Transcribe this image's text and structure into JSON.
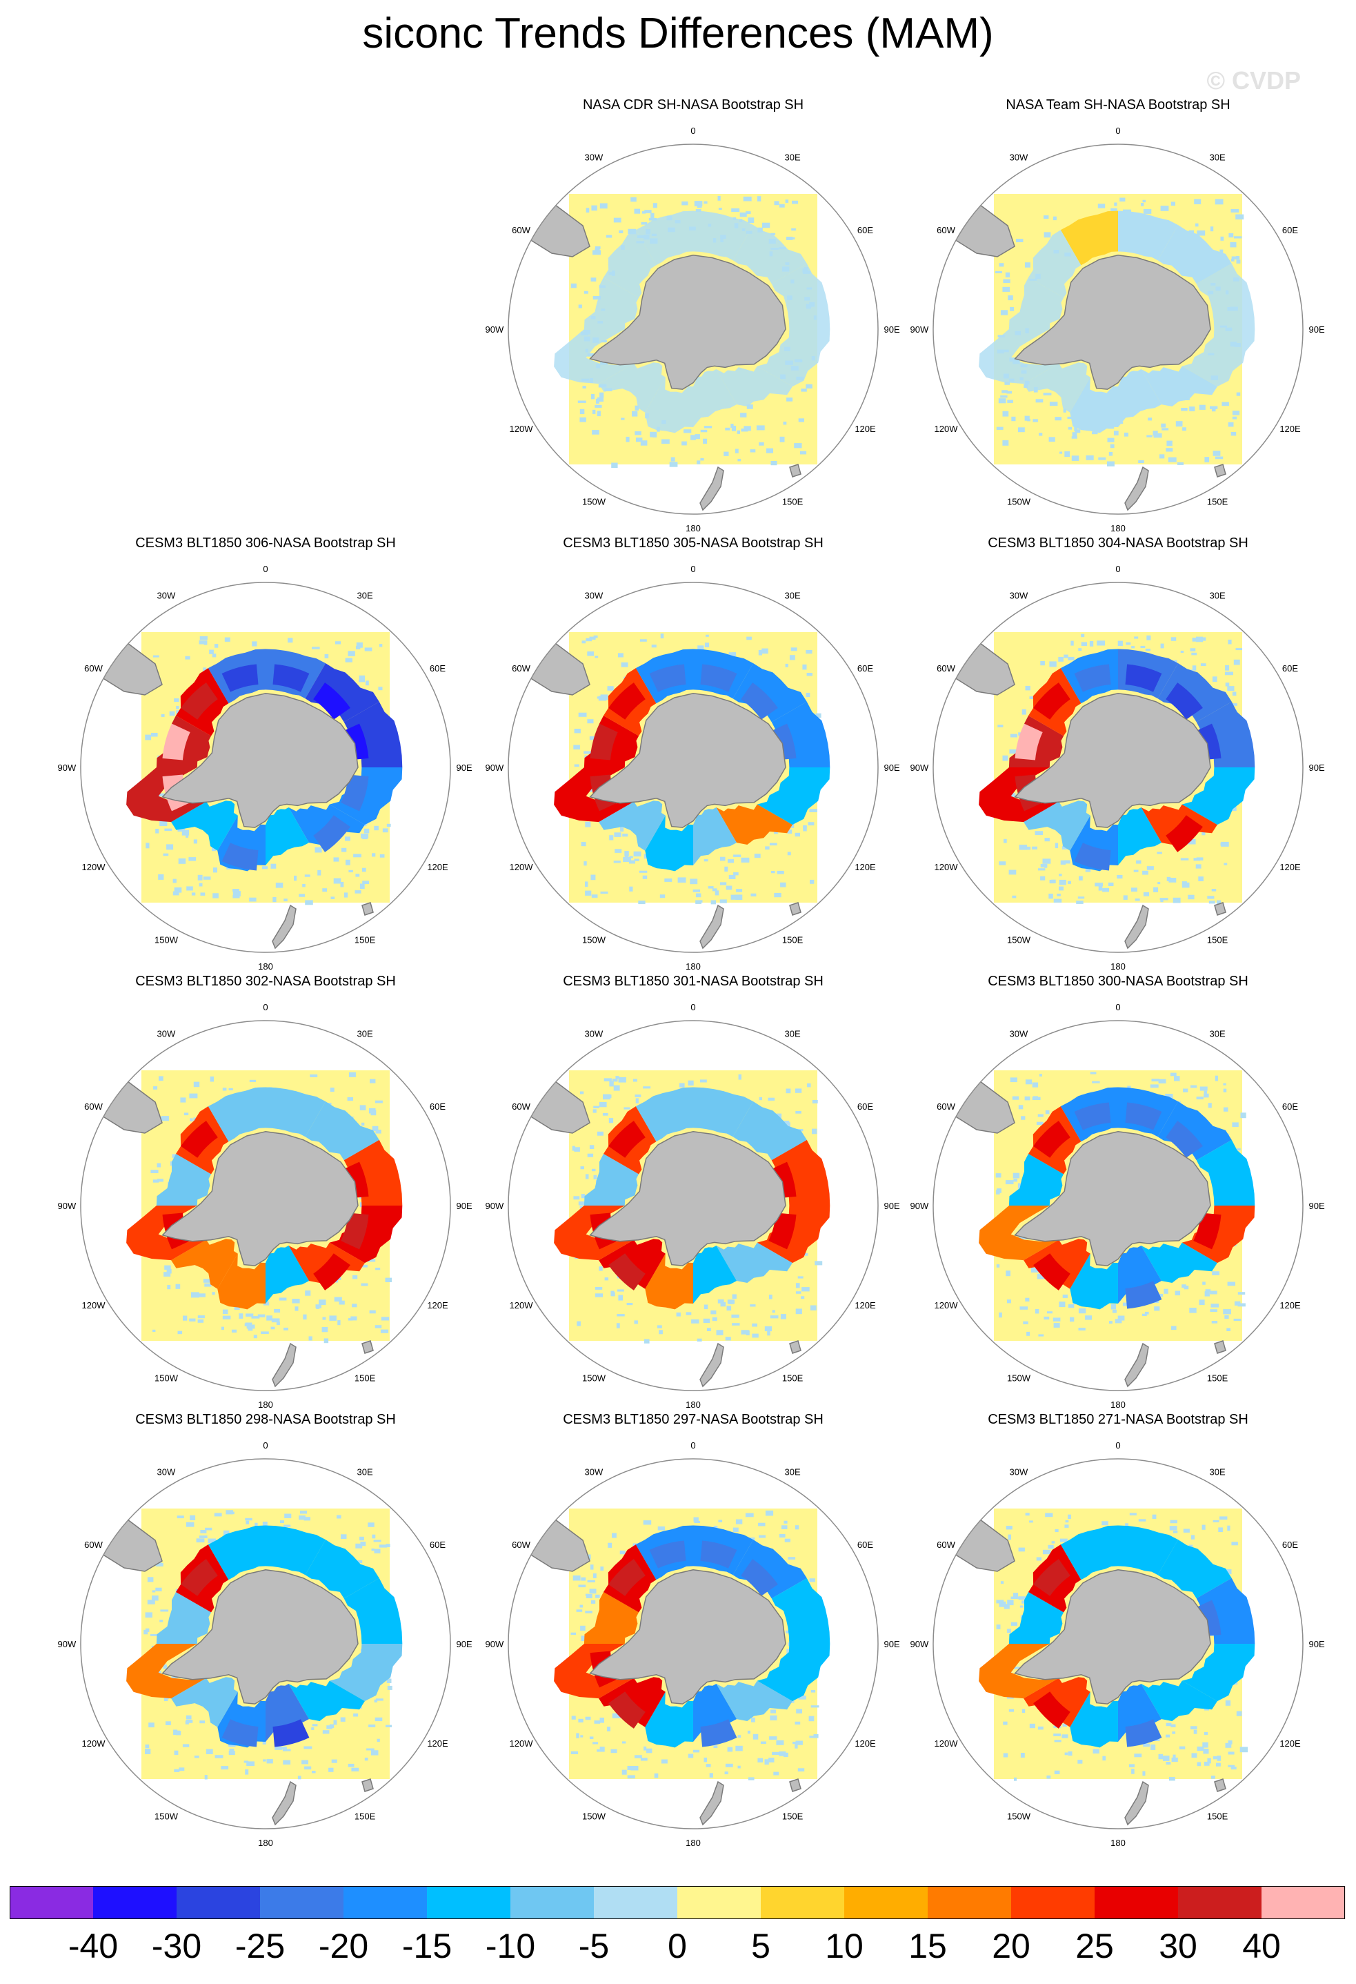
{
  "title": "siconc Trends Differences (MAM)",
  "watermark": "© CVDP",
  "longitude_labels": {
    "lon_0": "0",
    "lon_30e": "30E",
    "lon_60e": "60E",
    "lon_90e": "90E",
    "lon_120e": "120E",
    "lon_150e": "150E",
    "lon_180": "180",
    "lon_150w": "150W",
    "lon_120w": "120W",
    "lon_90w": "90W",
    "lon_60w": "60W",
    "lon_30w": "30W"
  },
  "panels": [
    {
      "title": "NASA CDR SH-NASA Bootstrap SH",
      "pattern": [
        0,
        0,
        0,
        0,
        0,
        0,
        0,
        0,
        0,
        0,
        0,
        0
      ]
    },
    {
      "title": "NASA Team SH-NASA Bootstrap SH",
      "pattern": [
        -1,
        -1,
        0,
        0,
        -1,
        -1,
        -1,
        0,
        0,
        0,
        0,
        1
      ]
    },
    {
      "title": "CESM3 BLT1850 306-NASA Bootstrap SH",
      "pattern": [
        -5,
        -6,
        -6,
        -4,
        -4,
        -3,
        -4,
        -3,
        6,
        6,
        5,
        -5
      ]
    },
    {
      "title": "CESM3 BLT1850 305-NASA Bootstrap SH",
      "pattern": [
        -4,
        -4,
        -4,
        -3,
        3,
        -2,
        -3,
        -2,
        5,
        5,
        4,
        -4
      ]
    },
    {
      "title": "CESM3 BLT1850 304-NASA Bootstrap SH",
      "pattern": [
        -5,
        -5,
        -5,
        -3,
        4,
        -3,
        -4,
        -2,
        5,
        6,
        4,
        -4
      ]
    },
    {
      "title": "CESM3 BLT1850 302-NASA Bootstrap SH",
      "pattern": [
        -2,
        -2,
        4,
        5,
        4,
        -3,
        3,
        3,
        4,
        -2,
        4,
        -2
      ]
    },
    {
      "title": "CESM3 BLT1850 301-NASA Bootstrap SH",
      "pattern": [
        -2,
        -2,
        4,
        4,
        -2,
        -3,
        3,
        5,
        4,
        -2,
        4,
        -2
      ]
    },
    {
      "title": "CESM3 BLT1850 300-NASA Bootstrap SH",
      "pattern": [
        -4,
        -4,
        -3,
        4,
        -3,
        -4,
        -3,
        4,
        3,
        -3,
        4,
        -4
      ]
    },
    {
      "title": "CESM3 BLT1850 298-NASA Bootstrap SH",
      "pattern": [
        -3,
        -3,
        -3,
        -2,
        -3,
        -5,
        -4,
        -2,
        3,
        -2,
        5,
        -3
      ]
    },
    {
      "title": "CESM3 BLT1850 297-NASA Bootstrap SH",
      "pattern": [
        -4,
        -4,
        -3,
        -3,
        -2,
        -4,
        -3,
        5,
        4,
        3,
        5,
        -4
      ]
    },
    {
      "title": "CESM3 BLT1850 271-NASA Bootstrap SH",
      "pattern": [
        -3,
        -3,
        -4,
        -3,
        -3,
        -4,
        -3,
        4,
        3,
        -3,
        5,
        -3
      ]
    }
  ],
  "colorbar": {
    "colors": [
      "#8a2be2",
      "#1e10ff",
      "#2b44e0",
      "#3c7be8",
      "#1e8fff",
      "#00bfff",
      "#6fc7f2",
      "#b0def3",
      "#fff68f",
      "#ffd52e",
      "#ffad00",
      "#ff7b00",
      "#ff3c00",
      "#e80000",
      "#cc1e1e",
      "#ffb3b3"
    ],
    "labels": [
      "-40",
      "-30",
      "-25",
      "-20",
      "-15",
      "-10",
      "-5",
      "0",
      "5",
      "10",
      "15",
      "20",
      "25",
      "30",
      "40"
    ]
  },
  "map_colors": {
    "land": "#bdbdbd",
    "land_edge": "#7a7a7a",
    "ocean_background": "#fff68f",
    "neutral_fill": "#b0def3",
    "frame_line": "#8c8c8c"
  }
}
